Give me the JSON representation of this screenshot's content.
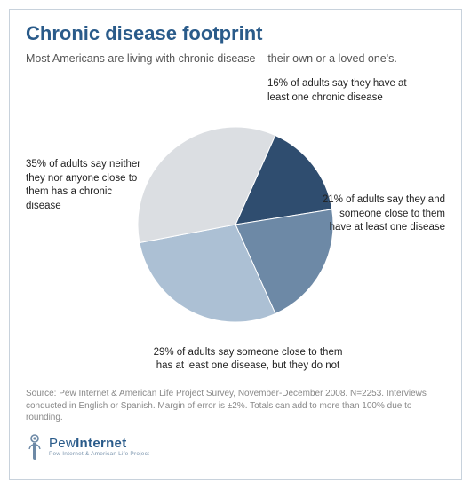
{
  "title": "Chronic disease footprint",
  "subtitle": "Most Americans are living with chronic disease – their own or a loved one's.",
  "chart": {
    "type": "pie",
    "radius": 110,
    "start_angle_deg": 294,
    "background_color": "#ffffff",
    "border_color": "#c8d2dc",
    "label_fontsize": 11.5,
    "label_color": "#222222",
    "slices": [
      {
        "value": 16,
        "color": "#2f4d6f",
        "label": "16% of adults say they have at least one chronic disease"
      },
      {
        "value": 21,
        "color": "#6d89a6",
        "label": "21% of adults say they and someone close to them have at least one disease"
      },
      {
        "value": 29,
        "color": "#acc0d4",
        "label": "29% of adults say someone close to them has at least one disease, but they do not"
      },
      {
        "value": 35,
        "color": "#dbdee2",
        "label": "35% of adults say neither they nor anyone close to them has a chronic disease"
      }
    ]
  },
  "source": "Source: Pew Internet & American Life Project Survey, November-December 2008. N=2253. Interviews conducted in English or Spanish.  Margin of error is ±2%. Totals can add to more than 100% due to rounding.",
  "logo": {
    "brand_light": "Pew",
    "brand_bold": "Internet",
    "tagline": "Pew Internet & American Life Project"
  },
  "colors": {
    "title": "#2a5b8a",
    "subtitle": "#555555",
    "source": "#888888",
    "logo": "#2a5b8a"
  }
}
